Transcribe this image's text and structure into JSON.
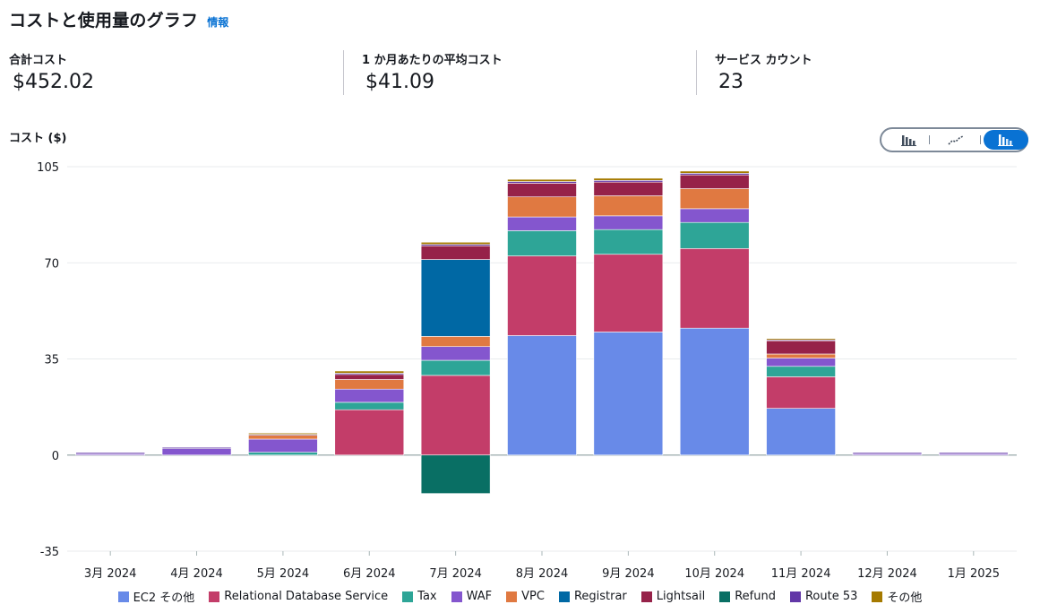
{
  "header": {
    "title": "コストと使用量のグラフ",
    "info_label": "情報"
  },
  "metrics": [
    {
      "label": "合計コスト",
      "value": "$452.02"
    },
    {
      "label": "1 か月あたりの平均コスト",
      "value": "$41.09"
    },
    {
      "label": "サービス カウント",
      "value": "23"
    }
  ],
  "view_toggle": {
    "options": [
      {
        "name": "bar-chart-icon",
        "selected": false
      },
      {
        "name": "line-chart-icon",
        "selected": false
      },
      {
        "name": "stacked-bar-chart-icon",
        "selected": true
      }
    ]
  },
  "chart_data": {
    "type": "bar",
    "stacked": true,
    "ylabel": "コスト ($)",
    "ylim": [
      -35,
      105
    ],
    "yticks": [
      -35,
      0,
      35,
      70,
      105
    ],
    "grid": true,
    "legend_position": "bottom",
    "categories": [
      "3月 2024",
      "4月 2024",
      "5月 2024",
      "6月 2024",
      "7月 2024",
      "8月 2024",
      "9月 2024",
      "10月 2024",
      "11月 2024",
      "12月 2024",
      "1月 2025"
    ],
    "series": [
      {
        "name": "EC2 その他",
        "color": "#688ae8",
        "values": [
          0,
          0,
          0,
          0,
          0,
          43.5,
          44.8,
          46.2,
          17,
          0,
          0
        ]
      },
      {
        "name": "Relational Database Service",
        "color": "#c33d69",
        "values": [
          0,
          0,
          0,
          16.5,
          29,
          29,
          28.3,
          29,
          11.5,
          0,
          0
        ]
      },
      {
        "name": "Tax",
        "color": "#2ea597",
        "values": [
          0,
          0,
          1,
          2.7,
          5.5,
          9.2,
          9,
          9.5,
          3.8,
          0,
          0
        ]
      },
      {
        "name": "WAF",
        "color": "#8456ce",
        "values": [
          0.6,
          2.5,
          4.8,
          4.8,
          5,
          5,
          5,
          5,
          3,
          0.6,
          0.6
        ]
      },
      {
        "name": "VPC",
        "color": "#e07941",
        "values": [
          0,
          0,
          1.6,
          3.5,
          3.7,
          7.3,
          7.3,
          7.3,
          1.5,
          0,
          0
        ]
      },
      {
        "name": "Registrar",
        "color": "#0068a4",
        "values": [
          0,
          0,
          0,
          0,
          28,
          0,
          0,
          0,
          0,
          0,
          0
        ]
      },
      {
        "name": "Lightsail",
        "color": "#962249",
        "values": [
          0,
          0,
          0,
          2,
          5,
          5,
          5,
          5,
          5,
          0,
          0
        ]
      },
      {
        "name": "Refund",
        "color": "#096f64",
        "values": [
          0,
          0,
          0,
          0,
          -14,
          0,
          0,
          0,
          0,
          0,
          0
        ]
      },
      {
        "name": "Route 53",
        "color": "#6237a7",
        "values": [
          0.3,
          0.3,
          0.3,
          0.3,
          0.5,
          0.6,
          0.6,
          0.6,
          0.3,
          0.3,
          0.3
        ]
      },
      {
        "name": "その他",
        "color": "#a57a00",
        "values": [
          0,
          0,
          0.3,
          0.8,
          0.8,
          0.8,
          0.8,
          0.8,
          0.3,
          0,
          0
        ]
      }
    ]
  }
}
